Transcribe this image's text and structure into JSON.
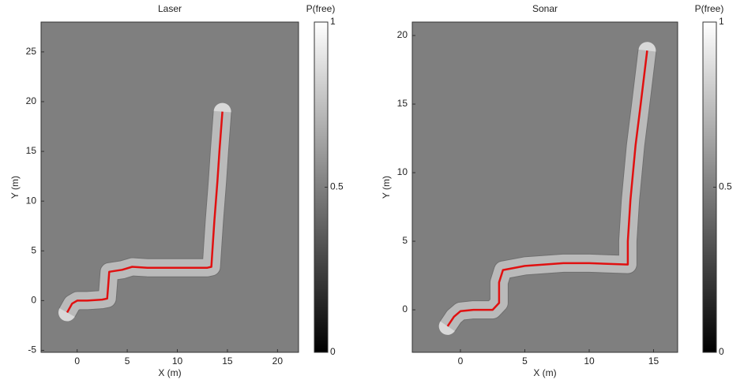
{
  "chart_data": [
    {
      "type": "line",
      "title": "Laser",
      "x_label": "X (m)",
      "y_label": "Y (m)",
      "xlim": [
        -3.6,
        22.1
      ],
      "ylim": [
        -5.2,
        28
      ],
      "xticks": [
        0,
        5,
        10,
        15,
        20
      ],
      "yticks": [
        -5,
        0,
        5,
        10,
        15,
        20,
        25
      ],
      "color": "#e01010",
      "x": [
        -1,
        -0.5,
        0,
        1,
        2.5,
        3,
        3.1,
        3.2,
        4.5,
        5.5,
        7,
        9,
        11,
        13,
        13.4,
        13.5,
        13.7,
        14,
        14.2,
        14.5
      ],
      "values": [
        -1.2,
        -0.3,
        0,
        0,
        0.1,
        0.2,
        1.5,
        2.9,
        3.1,
        3.4,
        3.3,
        3.3,
        3.3,
        3.3,
        3.4,
        5,
        8,
        12,
        15,
        19
      ],
      "colorbar": {
        "label": "P(free)",
        "lim": [
          0,
          1
        ],
        "ticks": [
          0,
          0.5,
          1
        ]
      }
    },
    {
      "type": "line",
      "title": "Sonar",
      "x_label": "X (m)",
      "y_label": "Y (m)",
      "xlim": [
        -3.74,
        16.87
      ],
      "ylim": [
        -3.1,
        20.98
      ],
      "xticks": [
        0,
        5,
        10,
        15
      ],
      "yticks": [
        0,
        5,
        10,
        15,
        20
      ],
      "color": "#e01010",
      "x": [
        -1,
        -0.5,
        0,
        1,
        2.5,
        3,
        3,
        3.3,
        5,
        8,
        10,
        13,
        13,
        13.2,
        13.6,
        14,
        14.5
      ],
      "values": [
        -1.2,
        -0.5,
        -0.1,
        0,
        0,
        0.5,
        2,
        2.9,
        3.2,
        3.4,
        3.4,
        3.3,
        5,
        8,
        12,
        15,
        18.9
      ],
      "colorbar": {
        "label": "P(free)",
        "lim": [
          0,
          1
        ],
        "ticks": [
          0,
          0.5,
          1
        ]
      }
    }
  ]
}
